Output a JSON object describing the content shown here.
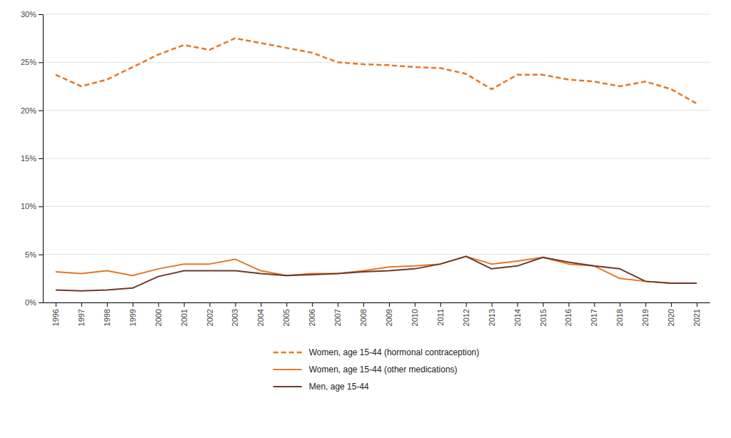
{
  "chart_data": {
    "type": "line",
    "x": [
      1996,
      1997,
      1998,
      1999,
      2000,
      2001,
      2002,
      2003,
      2004,
      2005,
      2006,
      2007,
      2008,
      2009,
      2010,
      2011,
      2012,
      2013,
      2014,
      2015,
      2016,
      2017,
      2018,
      2019,
      2020,
      2021
    ],
    "xlim": [
      1995.5,
      2021.5
    ],
    "xticks": [
      1996,
      1997,
      1998,
      1999,
      2000,
      2001,
      2002,
      2003,
      2004,
      2005,
      2006,
      2007,
      2008,
      2009,
      2010,
      2011,
      2012,
      2013,
      2014,
      2015,
      2016,
      2017,
      2018,
      2019,
      2020,
      2021
    ],
    "ylim": [
      0,
      0.3
    ],
    "yticks": [
      {
        "value": 0,
        "label": "0%"
      },
      {
        "value": 0.05,
        "label": "5%"
      },
      {
        "value": 0.1,
        "label": "10%"
      },
      {
        "value": 0.15,
        "label": "15%"
      },
      {
        "value": 0.2,
        "label": "20%"
      },
      {
        "value": 0.25,
        "label": "25%"
      },
      {
        "value": 0.3,
        "label": "30%"
      }
    ],
    "grid": true,
    "legend": "bottom",
    "series": [
      {
        "name": "Women, age 15-44 (hormonal contraception)",
        "color": "#E87722",
        "line_style": "dashed",
        "values": [
          0.237,
          0.225,
          0.232,
          0.245,
          0.258,
          0.268,
          0.263,
          0.275,
          0.27,
          0.265,
          0.26,
          0.25,
          0.248,
          0.247,
          0.245,
          0.244,
          0.238,
          0.222,
          0.237,
          0.237,
          0.232,
          0.23,
          0.225,
          0.23,
          0.222,
          0.207
        ]
      },
      {
        "name": "Women, age 15-44 (other medications)",
        "color": "#E87722",
        "line_style": "solid",
        "values": [
          0.032,
          0.03,
          0.033,
          0.028,
          0.035,
          0.04,
          0.04,
          0.045,
          0.033,
          0.028,
          0.03,
          0.03,
          0.033,
          0.037,
          0.038,
          0.04,
          0.048,
          0.04,
          0.043,
          0.047,
          0.04,
          0.038,
          0.025,
          0.022,
          0.02,
          0.02
        ]
      },
      {
        "name": "Men, age 15-44",
        "color": "#6B3A2A",
        "line_style": "solid",
        "values": [
          0.013,
          0.012,
          0.013,
          0.015,
          0.027,
          0.033,
          0.033,
          0.033,
          0.03,
          0.028,
          0.029,
          0.03,
          0.032,
          0.033,
          0.035,
          0.04,
          0.048,
          0.035,
          0.038,
          0.047,
          0.042,
          0.038,
          0.035,
          0.022,
          0.02,
          0.02
        ]
      }
    ]
  }
}
